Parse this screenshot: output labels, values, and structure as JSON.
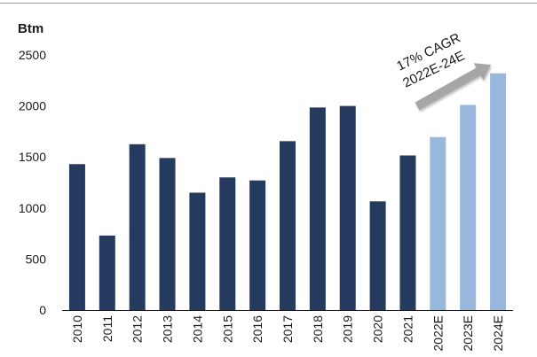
{
  "chart_data": {
    "type": "bar",
    "unit_label": "Btm",
    "categories": [
      "2010",
      "2011",
      "2012",
      "2013",
      "2014",
      "2015",
      "2016",
      "2017",
      "2018",
      "2019",
      "2020",
      "2021",
      "2022E",
      "2023E",
      "2024E"
    ],
    "values": [
      1430,
      730,
      1625,
      1490,
      1150,
      1300,
      1270,
      1655,
      1985,
      2000,
      1065,
      1515,
      1695,
      2010,
      2320
    ],
    "estimate": [
      false,
      false,
      false,
      false,
      false,
      false,
      false,
      false,
      false,
      false,
      false,
      false,
      true,
      true,
      true
    ],
    "ylim": [
      0,
      2500
    ],
    "yticks": [
      0,
      500,
      1000,
      1500,
      2000,
      2500
    ],
    "grid": false,
    "colors": {
      "actual": "#243a5e",
      "estimate": "#97b7dc",
      "arrow": "#a6a6a6"
    },
    "annotation": {
      "line1": "17% CAGR",
      "line2": "2022E-24E"
    }
  }
}
